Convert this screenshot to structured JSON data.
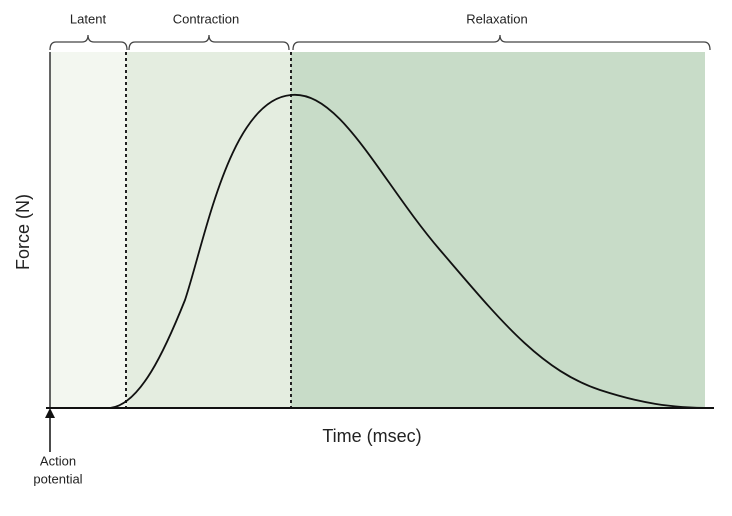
{
  "phases": [
    {
      "label": "Latent"
    },
    {
      "label": "Contraction"
    },
    {
      "label": "Relaxation"
    }
  ],
  "axes": {
    "y_label": "Force (N)",
    "x_label": "Time (msec)"
  },
  "annotation": {
    "lines": [
      "Action",
      "potential"
    ]
  }
}
